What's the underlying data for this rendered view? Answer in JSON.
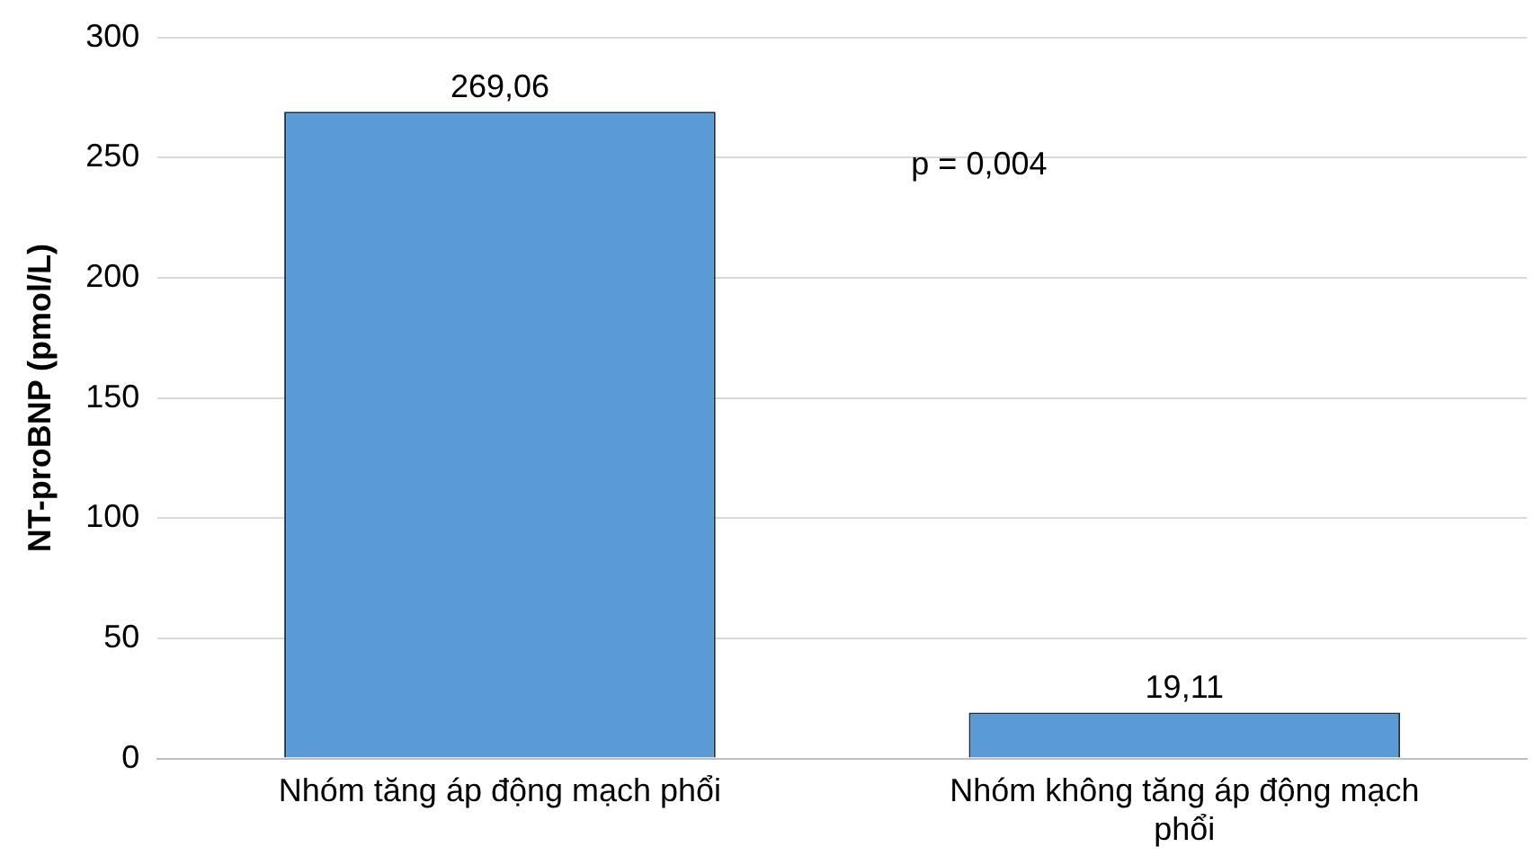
{
  "chart_data": {
    "type": "bar",
    "ylabel": "NT-proBNP (pmol/L)",
    "categories": [
      "Nhóm tăng áp động mạch phổi",
      "Nhóm không tăng áp động mạch phổi"
    ],
    "values": [
      269.06,
      19.11
    ],
    "value_labels": [
      "269,06",
      "19,11"
    ],
    "color": "#5b9bd5",
    "ylim": [
      0,
      300
    ],
    "yticks": [
      0,
      50,
      100,
      150,
      200,
      250,
      300
    ],
    "grid": "y",
    "annotations": [
      "p = 0,004"
    ]
  }
}
